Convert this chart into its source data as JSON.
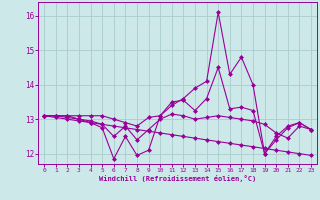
{
  "title": "",
  "xlabel": "Windchill (Refroidissement éolien,°C)",
  "ylabel": "",
  "bg_color": "#cce8e8",
  "grid_color": "#aacccc",
  "line_color": "#990099",
  "xlim": [
    -0.5,
    23.5
  ],
  "ylim": [
    11.7,
    16.4
  ],
  "yticks": [
    12,
    13,
    14,
    15,
    16
  ],
  "xticks": [
    0,
    1,
    2,
    3,
    4,
    5,
    6,
    7,
    8,
    9,
    10,
    11,
    12,
    13,
    14,
    15,
    16,
    17,
    18,
    19,
    20,
    21,
    22,
    23
  ],
  "series": [
    [
      13.1,
      13.1,
      13.1,
      13.1,
      13.1,
      13.1,
      13.0,
      12.9,
      12.8,
      13.05,
      13.1,
      13.4,
      13.6,
      13.9,
      14.1,
      16.1,
      14.3,
      14.8,
      14.0,
      12.0,
      12.5,
      12.8,
      12.9,
      12.7
    ],
    [
      13.1,
      13.1,
      13.1,
      13.0,
      12.9,
      12.75,
      11.85,
      12.5,
      11.95,
      12.1,
      13.1,
      13.5,
      13.55,
      13.25,
      13.6,
      14.5,
      13.3,
      13.35,
      13.25,
      12.0,
      12.4,
      12.75,
      12.9,
      12.7
    ],
    [
      13.1,
      13.1,
      13.05,
      13.0,
      12.95,
      12.85,
      12.5,
      12.8,
      12.4,
      12.7,
      13.0,
      13.15,
      13.1,
      13.0,
      13.05,
      13.1,
      13.05,
      13.0,
      12.95,
      12.85,
      12.6,
      12.45,
      12.8,
      12.7
    ],
    [
      13.1,
      13.05,
      13.0,
      12.95,
      12.9,
      12.85,
      12.8,
      12.75,
      12.7,
      12.65,
      12.6,
      12.55,
      12.5,
      12.45,
      12.4,
      12.35,
      12.3,
      12.25,
      12.2,
      12.15,
      12.1,
      12.05,
      12.0,
      11.95
    ]
  ]
}
